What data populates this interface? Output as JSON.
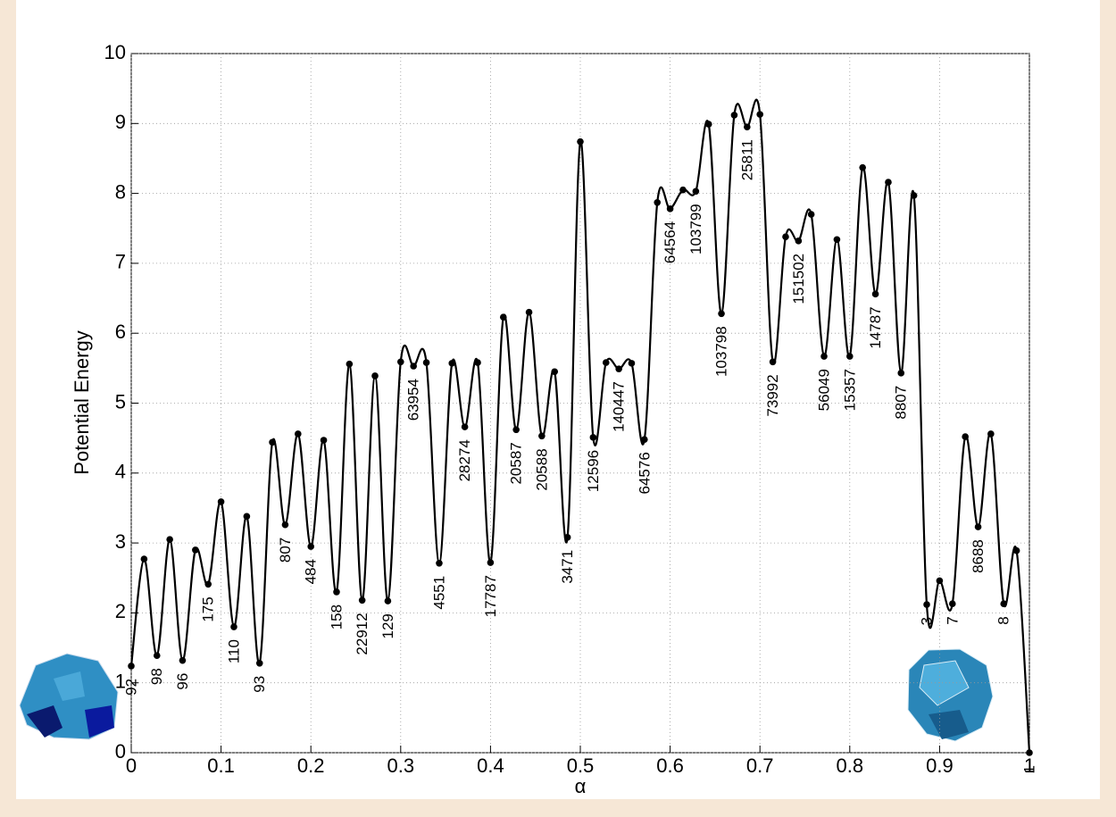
{
  "chart_data": {
    "type": "line",
    "xlabel": "α",
    "ylabel": "Potential Energy",
    "x": [
      0,
      0.0143,
      0.0286,
      0.0429,
      0.0571,
      0.0714,
      0.0857,
      0.1,
      0.1143,
      0.1286,
      0.1429,
      0.1571,
      0.1714,
      0.1857,
      0.2,
      0.2143,
      0.2286,
      0.2429,
      0.2571,
      0.2714,
      0.2857,
      0.3,
      0.3143,
      0.3286,
      0.3429,
      0.3571,
      0.3714,
      0.3857,
      0.4,
      0.4143,
      0.4286,
      0.4429,
      0.4571,
      0.4714,
      0.4857,
      0.5,
      0.5143,
      0.5286,
      0.5429,
      0.5571,
      0.5714,
      0.5857,
      0.6,
      0.6143,
      0.6286,
      0.6429,
      0.6571,
      0.6714,
      0.6857,
      0.7,
      0.7143,
      0.7286,
      0.7429,
      0.7571,
      0.7714,
      0.7857,
      0.8,
      0.8143,
      0.8286,
      0.8429,
      0.8571,
      0.8714,
      0.8857,
      0.9,
      0.9143,
      0.9286,
      0.9429,
      0.9571,
      0.9714,
      0.9857,
      1
    ],
    "values": [
      1.24,
      2.77,
      1.39,
      3.05,
      1.32,
      2.9,
      2.41,
      3.59,
      1.8,
      3.38,
      1.28,
      4.44,
      3.26,
      4.56,
      2.95,
      4.47,
      2.3,
      5.56,
      2.18,
      5.39,
      2.17,
      5.59,
      5.53,
      5.58,
      2.71,
      5.57,
      4.66,
      5.58,
      2.72,
      6.23,
      4.62,
      6.3,
      4.53,
      5.45,
      3.08,
      8.74,
      4.51,
      5.58,
      5.49,
      5.57,
      4.48,
      7.87,
      7.78,
      8.05,
      8.03,
      8.99,
      6.28,
      9.12,
      8.95,
      9.13,
      5.59,
      7.38,
      7.32,
      7.7,
      5.67,
      7.34,
      5.67,
      8.37,
      6.56,
      8.16,
      5.43,
      7.97,
      2.12,
      2.46,
      2.13,
      4.52,
      3.23,
      4.56,
      2.13,
      2.89,
      0.0
    ],
    "point_labels": [
      "92",
      null,
      "98",
      null,
      "96",
      null,
      "175",
      null,
      "110",
      null,
      "93",
      null,
      "807",
      null,
      "484",
      null,
      "158",
      null,
      "22912",
      null,
      "129",
      null,
      "63954",
      null,
      "4551",
      null,
      "28274",
      null,
      "17787",
      null,
      "20587",
      null,
      "20588",
      null,
      "3471",
      null,
      "12596",
      null,
      "140447",
      null,
      "64576",
      null,
      "64564",
      null,
      "103799",
      null,
      "103798",
      null,
      "25811",
      null,
      "73992",
      null,
      "151502",
      null,
      "56049",
      null,
      "15357",
      null,
      "14787",
      null,
      "8807",
      null,
      "3",
      null,
      "7",
      null,
      "8688",
      null,
      "8",
      null,
      "1"
    ],
    "color": "#000000",
    "xlim": [
      0,
      1
    ],
    "xticks": [
      0,
      0.1,
      0.2,
      0.3,
      0.4,
      0.5,
      0.6,
      0.7,
      0.8,
      0.9,
      1
    ],
    "ylim": [
      0,
      10
    ],
    "yticks": [
      0,
      1,
      2,
      3,
      4,
      5,
      6,
      7,
      8,
      9,
      10
    ],
    "grid": true
  }
}
